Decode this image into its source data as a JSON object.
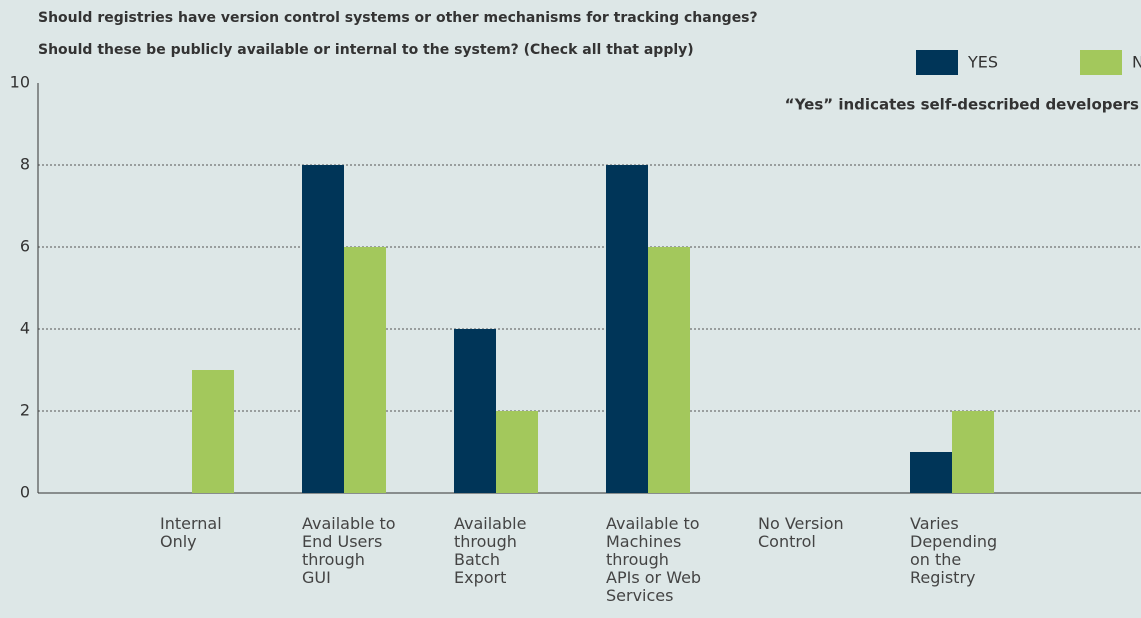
{
  "chart_data": {
    "type": "bar",
    "title": "Should registries have version control systems or other mechanisms for tracking changes?",
    "subtitle": "Should these be publicly available or internal to the system? (Check all that apply)",
    "annotation": "“Yes” indicates self-described developers",
    "categories": [
      "Internal Only",
      "Available to End Users through GUI",
      "Available through Batch Export",
      "Available to Machines through APIs or Web Services",
      "No Version Control",
      "Varies Depending on the Registry"
    ],
    "series": [
      {
        "name": "YES",
        "color": "#003558",
        "values": [
          0,
          8,
          4,
          8,
          0,
          1
        ]
      },
      {
        "name": "NO",
        "color": "#a3c85c",
        "values": [
          3,
          6,
          2,
          6,
          0,
          2
        ]
      }
    ],
    "ylim": [
      0,
      10
    ],
    "yticks": [
      0,
      2,
      4,
      6,
      8,
      10
    ],
    "grid": true,
    "legend": "top-right"
  }
}
